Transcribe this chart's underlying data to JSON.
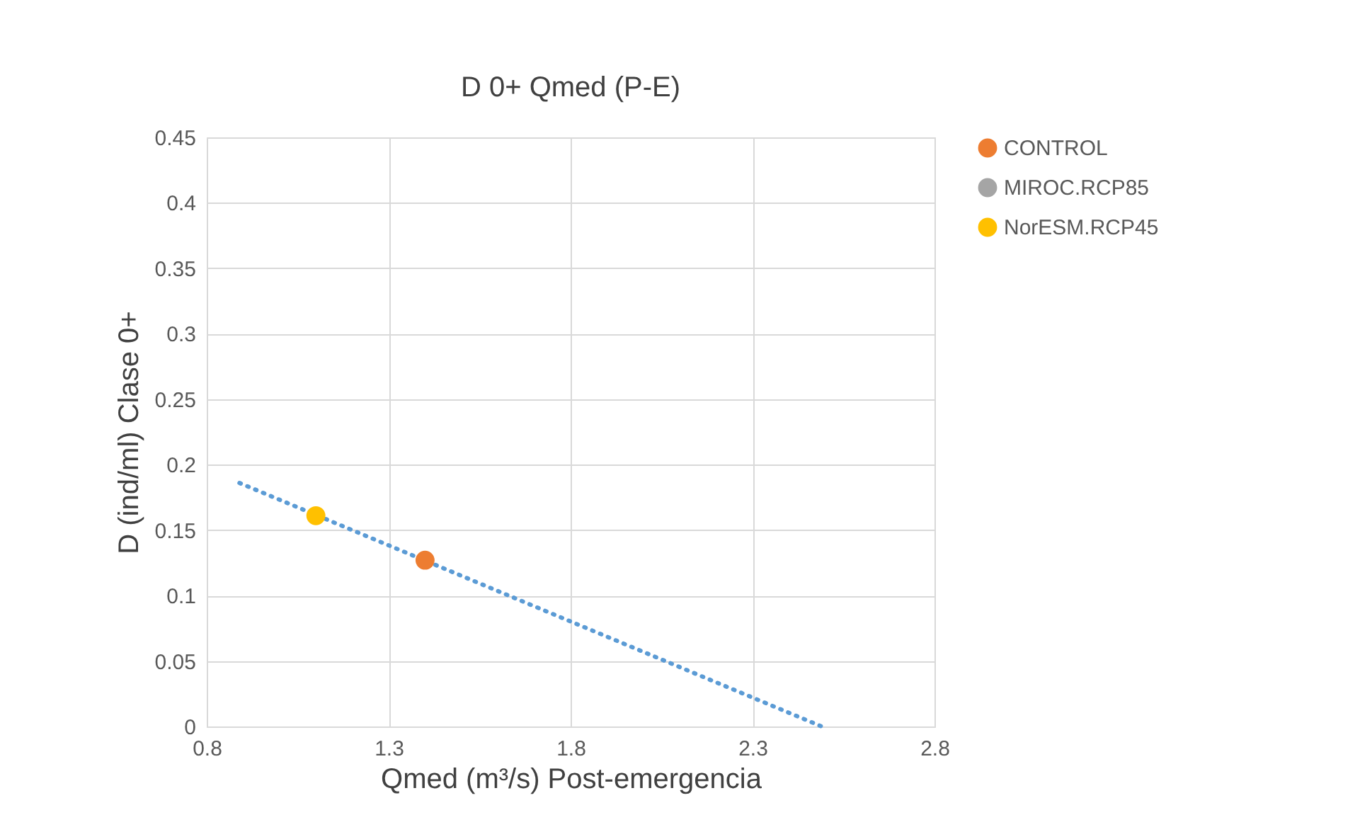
{
  "chart_data": {
    "type": "scatter",
    "title": "D 0+ Qmed (P-E)",
    "xlabel": "Qmed (m³/s) Post-emergencia",
    "ylabel": "D (ind/ml) Clase 0+",
    "xlim": [
      0.8,
      2.8
    ],
    "xticks": [
      0.8,
      1.3,
      1.8,
      2.3,
      2.8
    ],
    "ylim": [
      0,
      0.45
    ],
    "yticks": [
      0,
      0.05,
      0.1,
      0.15,
      0.2,
      0.25,
      0.3,
      0.35,
      0.4,
      0.45
    ],
    "grid": true,
    "legend": "right",
    "marker": "circle",
    "series": [
      {
        "name": "CONTROL",
        "color": "#ed7d31",
        "x": [
          1.4
        ],
        "values": [
          0.127
        ]
      },
      {
        "name": "MIROC.RCP85",
        "color": "#a5a5a5",
        "x": [
          null
        ],
        "values": [
          null
        ]
      },
      {
        "name": "NorESM.RCP45",
        "color": "#ffc000",
        "x": [
          1.1
        ],
        "values": [
          0.161
        ]
      },
      {
        "type": "line",
        "color": "#5b9bd5",
        "line_style": "dotted",
        "marker": "none",
        "x": [
          0.89,
          2.49
        ],
        "values": [
          0.186,
          0
        ]
      }
    ]
  }
}
